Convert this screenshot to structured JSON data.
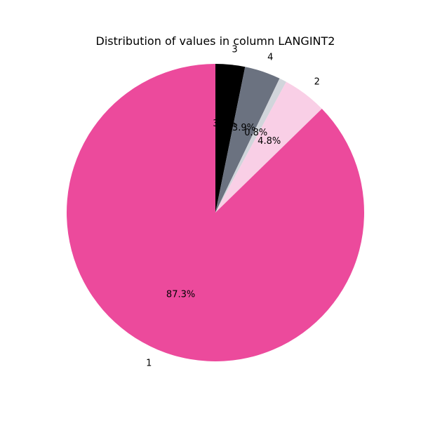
{
  "chart_data": {
    "type": "pie",
    "title": "Distribution of values in column LANGINT2",
    "start_angle_deg": 90,
    "direction": "clockwise",
    "slices": [
      {
        "label": "3",
        "value": 3.2,
        "pct_label": "3.2%",
        "color": "#000000"
      },
      {
        "label": "4",
        "value": 3.9,
        "pct_label": "3.9%",
        "color": "#6b7280"
      },
      {
        "label": "",
        "value": 0.8,
        "pct_label": "0.8%",
        "color": "#d1d5db"
      },
      {
        "label": "2",
        "value": 4.8,
        "pct_label": "4.8%",
        "color": "#f9cfe6"
      },
      {
        "label": "1",
        "value": 87.3,
        "pct_label": "87.3%",
        "color": "#ec4a9c"
      }
    ]
  }
}
